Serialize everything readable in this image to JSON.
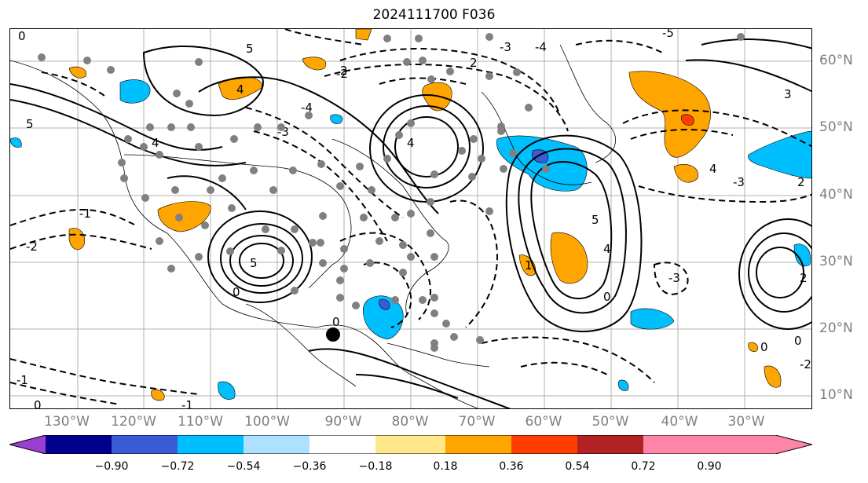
{
  "title": "2024111700 F036",
  "lon_labels": [
    "130°W",
    "120°W",
    "110°W",
    "100°W",
    "90°W",
    "80°W",
    "70°W",
    "60°W",
    "50°W",
    "40°W",
    "30°W"
  ],
  "lat_labels": [
    "60°N",
    "50°N",
    "40°N",
    "30°N",
    "20°N",
    "10°N"
  ],
  "colorbar": {
    "ticks": [
      "−0.90",
      "−0.72",
      "−0.54",
      "−0.36",
      "−0.18",
      "0.18",
      "0.36",
      "0.54",
      "0.72",
      "0.90"
    ],
    "colors": [
      "#9b3fd0",
      "#00008b",
      "#3a5bd4",
      "#00bfff",
      "#aee1ff",
      "#ffffff",
      "#ffe88a",
      "#ffa500",
      "#ff3d00",
      "#b22222",
      "#ff85a8"
    ],
    "extend": "both"
  },
  "contour_labels": [
    {
      "text": "0"
    },
    {
      "text": "5"
    },
    {
      "text": "-4"
    },
    {
      "text": "-2"
    },
    {
      "text": "4"
    },
    {
      "text": "-3"
    },
    {
      "text": "2"
    },
    {
      "text": "-5"
    },
    {
      "text": "-1"
    },
    {
      "text": "1"
    },
    {
      "text": "3"
    },
    {
      "text": "-2"
    }
  ],
  "markers": {
    "large_dot_color": "#000000",
    "small_dot_color": "#808080"
  }
}
